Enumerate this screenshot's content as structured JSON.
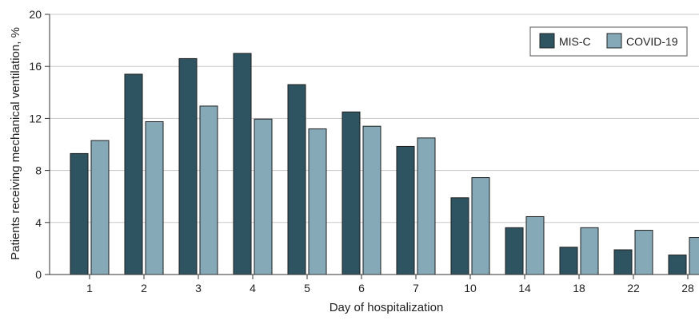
{
  "chart_data": {
    "type": "bar",
    "title": "",
    "xlabel": "Day of hospitalization",
    "ylabel": "Patients receiving mechanical ventilation, %",
    "ylim": [
      0,
      20
    ],
    "yticks": [
      0,
      4,
      8,
      12,
      16,
      20
    ],
    "grid": "horizontal",
    "legend_position": "top-right",
    "categories": [
      "1",
      "2",
      "3",
      "4",
      "5",
      "6",
      "7",
      "10",
      "14",
      "18",
      "22",
      "28"
    ],
    "series": [
      {
        "name": "MIS-C",
        "color": "#2f5461",
        "values": [
          9.3,
          15.4,
          16.6,
          17.0,
          14.6,
          12.5,
          9.85,
          5.9,
          3.6,
          2.1,
          1.9,
          1.5
        ]
      },
      {
        "name": "COVID-19",
        "color": "#86a9b8",
        "values": [
          10.3,
          11.75,
          12.95,
          11.95,
          11.2,
          11.4,
          10.5,
          7.45,
          4.45,
          3.6,
          3.4,
          2.85
        ]
      }
    ]
  }
}
